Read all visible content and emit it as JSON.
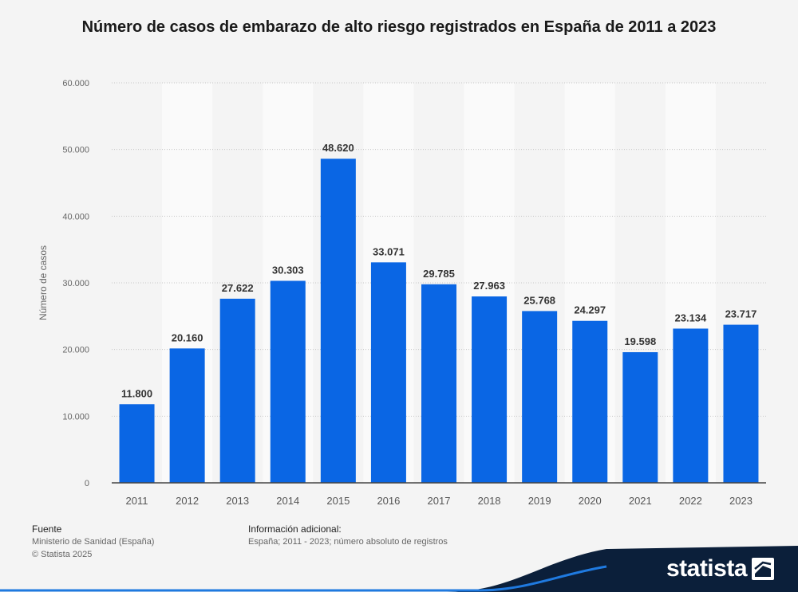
{
  "title": "Número de casos de embarazo de alto riesgo registrados en España de 2011 a 2023",
  "footer": {
    "source_heading": "Fuente",
    "source_text": "Ministerio de Sanidad (España)",
    "copyright": "© Statista 2025",
    "info_heading": "Información adicional:",
    "info_text": "España; 2011 - 2023; número absoluto de registros"
  },
  "brand": {
    "name": "statista",
    "icon": "statista-logo-icon"
  },
  "colors": {
    "bar": "#0a66e4",
    "background": "#f4f4f4",
    "band": "#fafafa",
    "brand_dark": "#0b1f3a"
  },
  "chart_data": {
    "type": "bar",
    "title": "Número de casos de embarazo de alto riesgo registrados en España de 2011 a 2023",
    "ylabel": "Número de casos",
    "xlabel": "",
    "categories": [
      "2011",
      "2012",
      "2013",
      "2014",
      "2015",
      "2016",
      "2017",
      "2018",
      "2019",
      "2020",
      "2021",
      "2022",
      "2023"
    ],
    "values": [
      11800,
      20160,
      27622,
      30303,
      48620,
      33071,
      29785,
      27963,
      25768,
      24297,
      19598,
      23134,
      23717
    ],
    "value_labels": [
      "11.800",
      "20.160",
      "27.622",
      "30.303",
      "48.620",
      "33.071",
      "29.785",
      "27.963",
      "25.768",
      "24.297",
      "19.598",
      "23.134",
      "23.717"
    ],
    "ylim": [
      0,
      60000
    ],
    "yticks": [
      0,
      10000,
      20000,
      30000,
      40000,
      50000,
      60000
    ],
    "ytick_labels": [
      "0",
      "10.000",
      "20.000",
      "30.000",
      "40.000",
      "50.000",
      "60.000"
    ],
    "grid": true,
    "legend": "none"
  }
}
